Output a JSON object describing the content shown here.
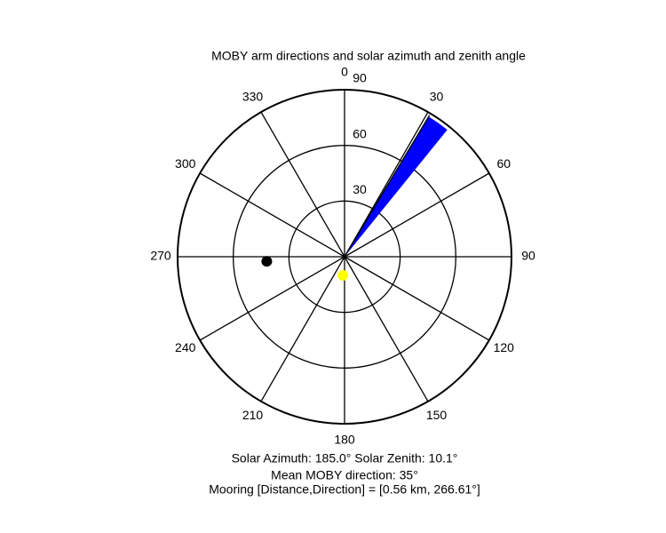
{
  "chart_data": {
    "type": "polar",
    "title": "MOBY arm directions and solar azimuth and zenith angle",
    "rlim": [
      0,
      90
    ],
    "rticks": [
      30,
      60,
      90
    ],
    "thetaticks": [
      0,
      30,
      60,
      90,
      120,
      150,
      180,
      210,
      240,
      270,
      300,
      330
    ],
    "wedge": {
      "theta": [
        31,
        39
      ],
      "r": 88,
      "color": "#0000ff"
    },
    "arm_line": {
      "theta": 31,
      "r": 89,
      "color": "#000000"
    },
    "points": [
      {
        "theta": 266.61,
        "r": 42,
        "color": "#000000"
      },
      {
        "theta": 185,
        "r": 10.1,
        "color": "#ffff00"
      }
    ],
    "annotations": [
      "Solar Azimuth: 185.0°   Solar Zenith: 10.1°",
      "Mean MOBY direction: 35°",
      "Mooring [Distance,Direction] = [0.56 km, 266.61°]"
    ]
  }
}
